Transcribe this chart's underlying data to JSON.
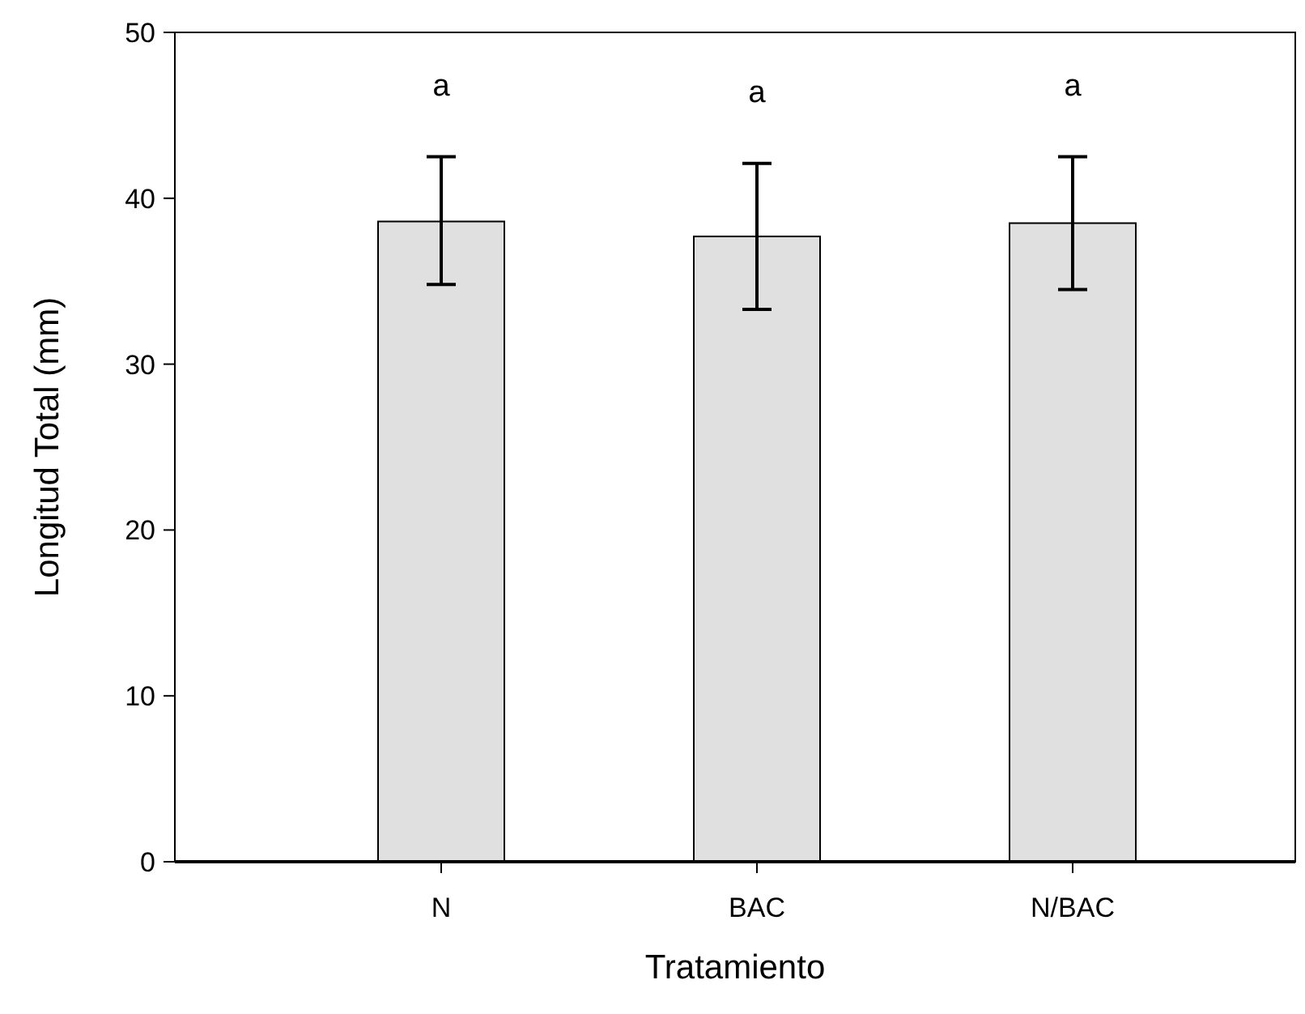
{
  "chart_data": {
    "type": "bar",
    "xlabel": "Tratamiento",
    "ylabel": "Longitud Total (mm)",
    "categories": [
      "N",
      "BAC",
      "N/BAC"
    ],
    "values": [
      38.6,
      37.7,
      38.5
    ],
    "errors": [
      [
        34.8,
        42.5
      ],
      [
        33.3,
        42.1
      ],
      [
        34.5,
        42.5
      ]
    ],
    "color": "#e0e0e0",
    "ylim": [
      0,
      50
    ],
    "yticks": [
      0,
      10,
      20,
      30,
      40,
      50
    ],
    "annotations": [
      "a",
      "a",
      "a"
    ]
  }
}
